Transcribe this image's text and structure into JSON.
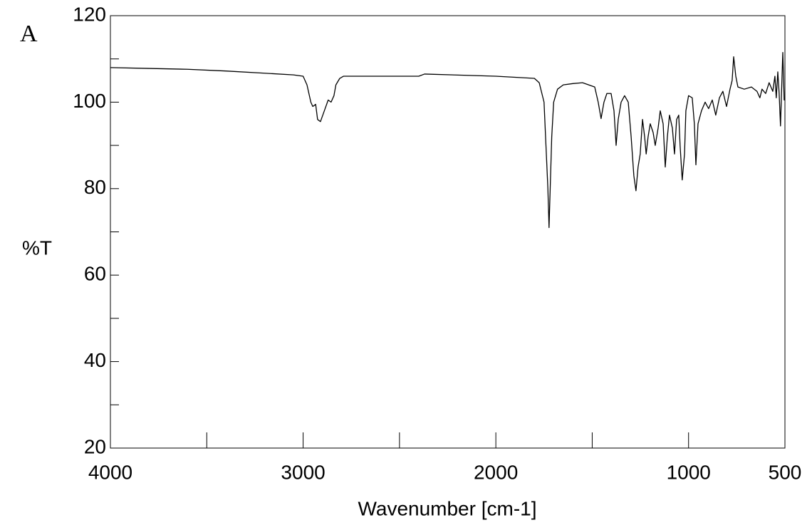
{
  "chart_data": {
    "type": "line",
    "panel_label": "A",
    "xlabel": "Wavenumber [cm-1]",
    "ylabel": "%T",
    "xlim": [
      4000,
      500
    ],
    "ylim": [
      20,
      120
    ],
    "xticks": [
      4000,
      3000,
      2000,
      1000,
      500
    ],
    "xminorticks": [
      3500,
      2500,
      1500
    ],
    "yticks": [
      20,
      40,
      60,
      80,
      100,
      120
    ],
    "yminorticks": [
      30,
      50,
      70,
      90,
      110
    ],
    "series": [
      {
        "color": "#000000",
        "x": [
          4000,
          3800,
          3600,
          3400,
          3200,
          3050,
          3000,
          2980,
          2960,
          2950,
          2935,
          2925,
          2910,
          2890,
          2870,
          2855,
          2840,
          2830,
          2810,
          2790,
          2400,
          2370,
          2000,
          1800,
          1775,
          1750,
          1740,
          1730,
          1724,
          1718,
          1710,
          1700,
          1680,
          1650,
          1600,
          1550,
          1487,
          1469,
          1454,
          1439,
          1424,
          1402,
          1387,
          1376,
          1365,
          1350,
          1332,
          1313,
          1298,
          1284,
          1273,
          1262,
          1251,
          1239,
          1228,
          1220,
          1210,
          1199,
          1184,
          1173,
          1158,
          1147,
          1132,
          1121,
          1110,
          1099,
          1084,
          1073,
          1062,
          1051,
          1044,
          1033,
          1021,
          1014,
          1000,
          981,
          970,
          962,
          951,
          933,
          914,
          896,
          877,
          859,
          840,
          822,
          803,
          785,
          774,
          766,
          755,
          744,
          711,
          674,
          645,
          630,
          619,
          600,
          582,
          563,
          552,
          545,
          537,
          530,
          523,
          515,
          511,
          504,
          500
        ],
        "values": [
          108,
          107.8,
          107.6,
          107.2,
          106.7,
          106.3,
          106,
          104,
          100,
          99,
          99.5,
          96,
          95.5,
          98,
          100.5,
          100,
          101.5,
          104,
          105.5,
          106,
          106,
          106.5,
          106,
          105.5,
          104.5,
          100,
          90,
          80,
          71,
          80,
          92,
          100,
          103,
          104,
          104.3,
          104.5,
          103.5,
          100,
          96.2,
          100,
          102,
          102,
          98,
          90,
          96,
          100,
          101.5,
          100,
          92,
          83,
          79.5,
          85,
          88,
          96,
          92,
          88,
          92,
          95,
          93,
          90,
          94,
          98,
          95,
          85,
          92,
          97,
          94,
          88,
          96,
          97,
          90,
          82,
          88,
          98,
          101.5,
          101,
          95,
          85.5,
          95,
          98,
          100,
          98.5,
          100.5,
          97,
          101,
          102.5,
          99,
          103,
          105,
          110.5,
          106,
          103.5,
          103,
          103.5,
          102.5,
          101,
          103,
          102,
          104.5,
          102.5,
          106,
          101,
          107,
          102,
          94.5,
          106,
          111.5,
          100.5,
          100.5
        ]
      }
    ]
  }
}
